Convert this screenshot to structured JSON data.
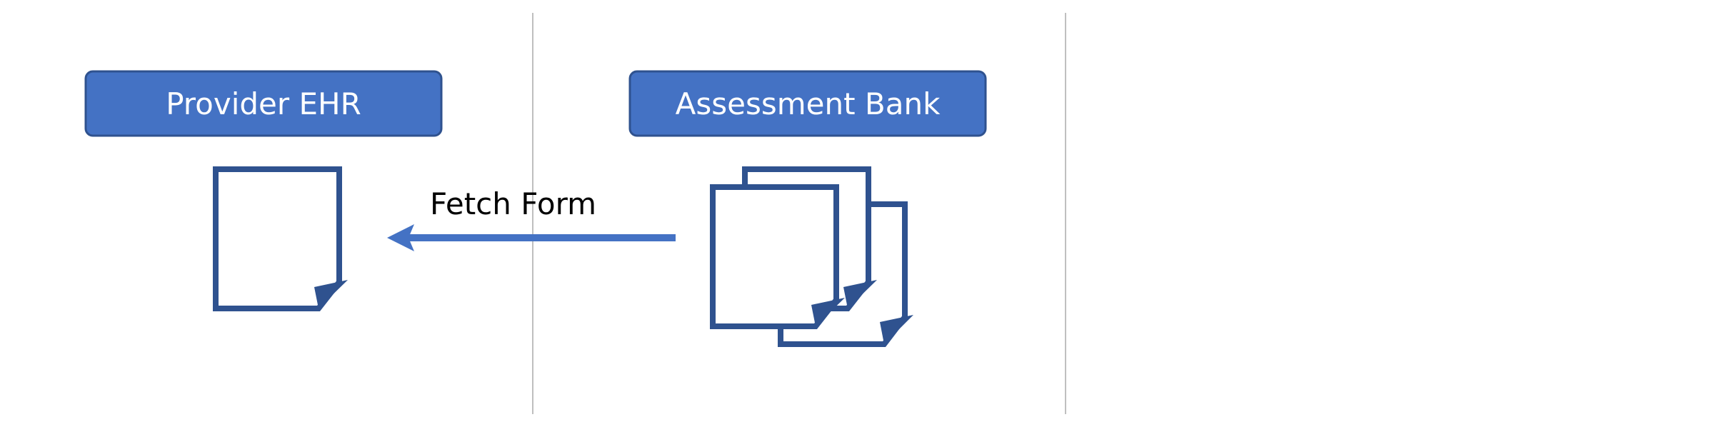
{
  "diagram": {
    "nodes": {
      "provider_ehr": {
        "label": "Provider EHR"
      },
      "assessment_bank": {
        "label": "Assessment Bank"
      }
    },
    "edges": {
      "fetch_form": {
        "label": "Fetch Form",
        "from": "Assessment Bank",
        "to": "Provider EHR"
      }
    },
    "colors": {
      "box_fill": "#4472C4",
      "box_stroke": "#2F528F",
      "document_stroke": "#2F528F",
      "arrow": "#4472C4",
      "divider": "#BFBFBF"
    },
    "icons": [
      "single-document-icon",
      "multiple-documents-icon"
    ]
  }
}
